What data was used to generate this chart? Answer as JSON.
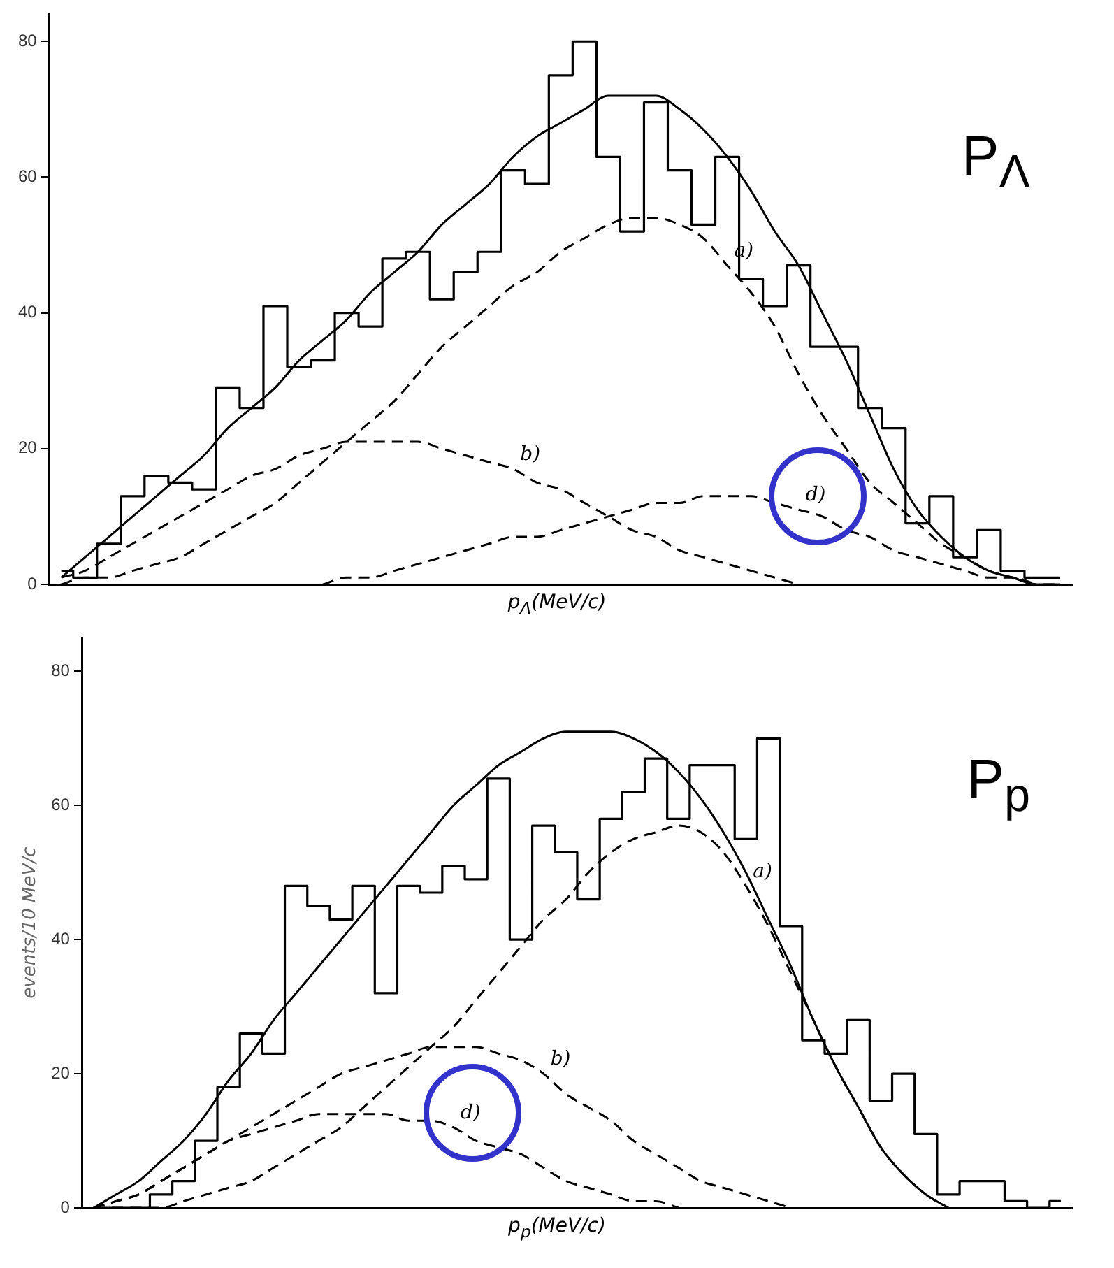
{
  "chart_data": [
    {
      "type": "line",
      "xlabel": "p$_{Λ}$(MeV/c)",
      "annotations": [
        "P$_{Λ}$"
      ],
      "ylim": [
        0,
        84
      ],
      "yticks": [
        0,
        20,
        40,
        60,
        80
      ],
      "tick_labels": "y",
      "categories": [
        null,
        null,
        null,
        null,
        null,
        null,
        null,
        null,
        null,
        null,
        null,
        null,
        null,
        null,
        null,
        null,
        null,
        null,
        null,
        null,
        null,
        null,
        null,
        null,
        null,
        null,
        null,
        null,
        null,
        null,
        null,
        null,
        null,
        null,
        null,
        null,
        null,
        null,
        null,
        null,
        null,
        null,
        null
      ],
      "series": [
        {
          "type": "step",
          "color": "#000000",
          "values": [
            2,
            1,
            6,
            13,
            16,
            15,
            14,
            29,
            26,
            41,
            32,
            33,
            40,
            38,
            48,
            49,
            42,
            46,
            49,
            61,
            59,
            75,
            80,
            63,
            52,
            71,
            61,
            53,
            63,
            45,
            41,
            47,
            35,
            35,
            26,
            23,
            9,
            13,
            4,
            8,
            2,
            1,
            1
          ]
        },
        {
          "type": "line",
          "color": "#000000",
          "values": [
            1,
            4,
            7,
            10,
            13,
            16,
            19,
            23,
            26,
            29,
            33,
            36,
            39,
            43,
            46,
            49,
            53,
            56,
            59,
            63,
            66,
            68,
            70,
            72,
            72,
            72,
            70,
            67,
            63,
            58,
            52,
            47,
            40,
            33,
            25,
            17,
            11,
            7,
            4,
            2,
            1,
            0,
            0
          ]
        },
        {
          "type": "line",
          "name": "a)",
          "color": "#000000",
          "line_style": "dashed",
          "values": [
            0,
            1,
            1,
            2,
            3,
            4,
            6,
            8,
            10,
            12,
            15,
            18,
            21,
            24,
            27,
            31,
            35,
            38,
            41,
            44,
            46,
            49,
            51,
            53,
            54,
            54,
            53,
            51,
            47,
            43,
            38,
            31,
            25,
            20,
            15,
            12,
            9,
            6,
            4,
            2,
            1,
            0,
            0
          ]
        },
        {
          "type": "line",
          "name": "b)",
          "color": "#000000",
          "line_style": "dashed",
          "values": [
            1,
            2,
            4,
            6,
            8,
            10,
            12,
            14,
            16,
            17,
            19,
            20,
            21,
            21,
            21,
            21,
            20,
            19,
            18,
            17,
            15,
            14,
            12,
            10,
            8,
            7,
            5,
            4,
            3,
            2,
            1,
            0,
            null,
            null,
            null,
            null,
            null,
            null,
            null,
            null,
            null,
            null,
            null
          ]
        },
        {
          "type": "line",
          "name": "d)",
          "color": "#000000",
          "line_style": "dashed",
          "values": [
            null,
            null,
            null,
            null,
            null,
            null,
            null,
            null,
            null,
            null,
            null,
            0,
            1,
            1,
            2,
            3,
            4,
            5,
            6,
            7,
            7,
            8,
            9,
            10,
            11,
            12,
            12,
            13,
            13,
            13,
            12,
            11,
            10,
            8,
            7,
            5,
            4,
            3,
            2,
            1,
            1,
            0,
            null
          ]
        }
      ]
    },
    {
      "type": "line",
      "xlabel": "p$_{p}$(MeV/c)",
      "ylabel": "events/10 MeV/c",
      "annotations": [
        "P$_{p}$"
      ],
      "ylim": [
        0,
        85
      ],
      "yticks": [
        0,
        20,
        40,
        60,
        80
      ],
      "tick_labels": "y",
      "categories": [
        null,
        null,
        null,
        null,
        null,
        null,
        null,
        null,
        null,
        null,
        null,
        null,
        null,
        null,
        null,
        null,
        null,
        null,
        null,
        null,
        null,
        null,
        null,
        null,
        null,
        null,
        null,
        null,
        null,
        null,
        null,
        null,
        null,
        null,
        null,
        null,
        null,
        null,
        null,
        null,
        null,
        null,
        null,
        null
      ],
      "series": [
        {
          "type": "step",
          "color": "#000000",
          "values": [
            0,
            0,
            0,
            2,
            4,
            10,
            18,
            26,
            23,
            48,
            45,
            43,
            48,
            32,
            48,
            47,
            51,
            49,
            64,
            40,
            57,
            53,
            46,
            58,
            62,
            67,
            58,
            66,
            66,
            55,
            70,
            42,
            25,
            23,
            28,
            16,
            20,
            11,
            2,
            4,
            4,
            1,
            0,
            1
          ]
        },
        {
          "type": "line",
          "color": "#000000",
          "values": [
            0,
            2,
            4,
            7,
            10,
            14,
            19,
            23,
            28,
            32,
            36,
            40,
            44,
            48,
            52,
            56,
            60,
            63,
            66,
            68,
            70,
            71,
            71,
            71,
            70,
            68,
            65,
            61,
            56,
            50,
            43,
            36,
            28,
            21,
            15,
            9,
            5,
            2,
            0,
            null,
            null,
            null,
            null,
            null
          ]
        },
        {
          "type": "line",
          "name": "a)",
          "color": "#000000",
          "line_style": "dashed",
          "values": [
            0,
            0,
            0,
            0,
            1,
            2,
            3,
            4,
            6,
            8,
            10,
            12,
            15,
            18,
            21,
            24,
            27,
            31,
            35,
            39,
            43,
            46,
            50,
            53,
            55,
            56,
            57,
            56,
            53,
            48,
            42,
            35,
            28,
            21,
            15,
            9,
            5,
            2,
            0,
            null,
            null,
            null,
            null,
            null
          ]
        },
        {
          "type": "line",
          "name": "b)",
          "color": "#000000",
          "line_style": "dashed",
          "values": [
            0,
            1,
            2,
            4,
            6,
            8,
            10,
            12,
            14,
            16,
            18,
            20,
            21,
            22,
            23,
            24,
            24,
            24,
            23,
            22,
            20,
            17,
            15,
            13,
            10,
            8,
            6,
            4,
            3,
            2,
            1,
            0,
            null,
            null,
            null,
            null,
            null,
            null,
            null,
            null,
            null,
            null,
            null,
            null
          ]
        },
        {
          "type": "line",
          "name": "d)",
          "color": "#000000",
          "line_style": "dashed",
          "values": [
            0,
            1,
            2,
            4,
            6,
            8,
            10,
            11,
            12,
            13,
            14,
            14,
            14,
            14,
            13,
            13,
            12,
            10,
            9,
            8,
            6,
            4,
            3,
            2,
            1,
            1,
            0,
            null,
            null,
            null,
            null,
            null,
            null,
            null,
            null,
            null,
            null,
            null,
            null,
            null,
            null,
            null,
            null,
            null
          ]
        }
      ]
    }
  ]
}
